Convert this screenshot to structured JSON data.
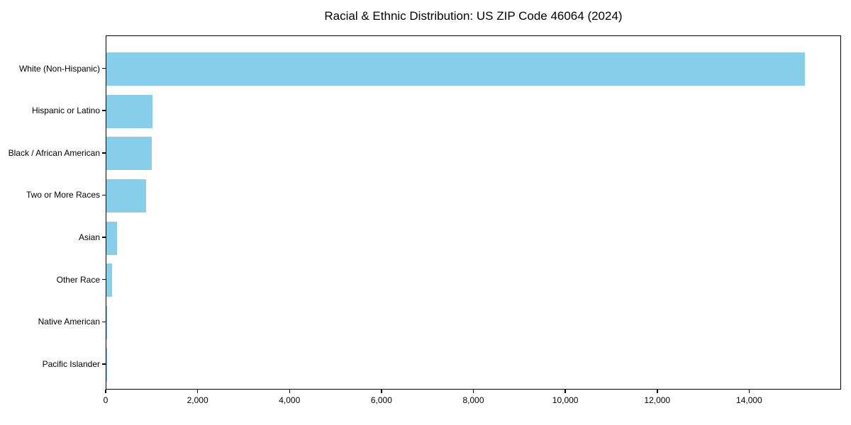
{
  "chart_data": {
    "type": "bar",
    "orientation": "horizontal",
    "title": "Racial & Ethnic Distribution: US ZIP Code 46064 (2024)",
    "categories": [
      "White (Non-Hispanic)",
      "Hispanic or Latino",
      "Black / African American",
      "Two or More Races",
      "Asian",
      "Other Race",
      "Native American",
      "Pacific Islander"
    ],
    "values": [
      15230,
      1010,
      990,
      860,
      230,
      120,
      15,
      5
    ],
    "bar_color": "#87CEEB",
    "xlabel": "",
    "ylabel": "",
    "xlim": [
      0,
      16000
    ],
    "xticks": [
      0,
      2000,
      4000,
      6000,
      8000,
      10000,
      12000,
      14000
    ],
    "xtick_labels": [
      "0",
      "2,000",
      "4,000",
      "6,000",
      "8,000",
      "10,000",
      "12,000",
      "14,000"
    ],
    "grid": false,
    "legend": null,
    "axis_color": "#000000",
    "text_color": "#000000",
    "background_color": "#ffffff"
  }
}
